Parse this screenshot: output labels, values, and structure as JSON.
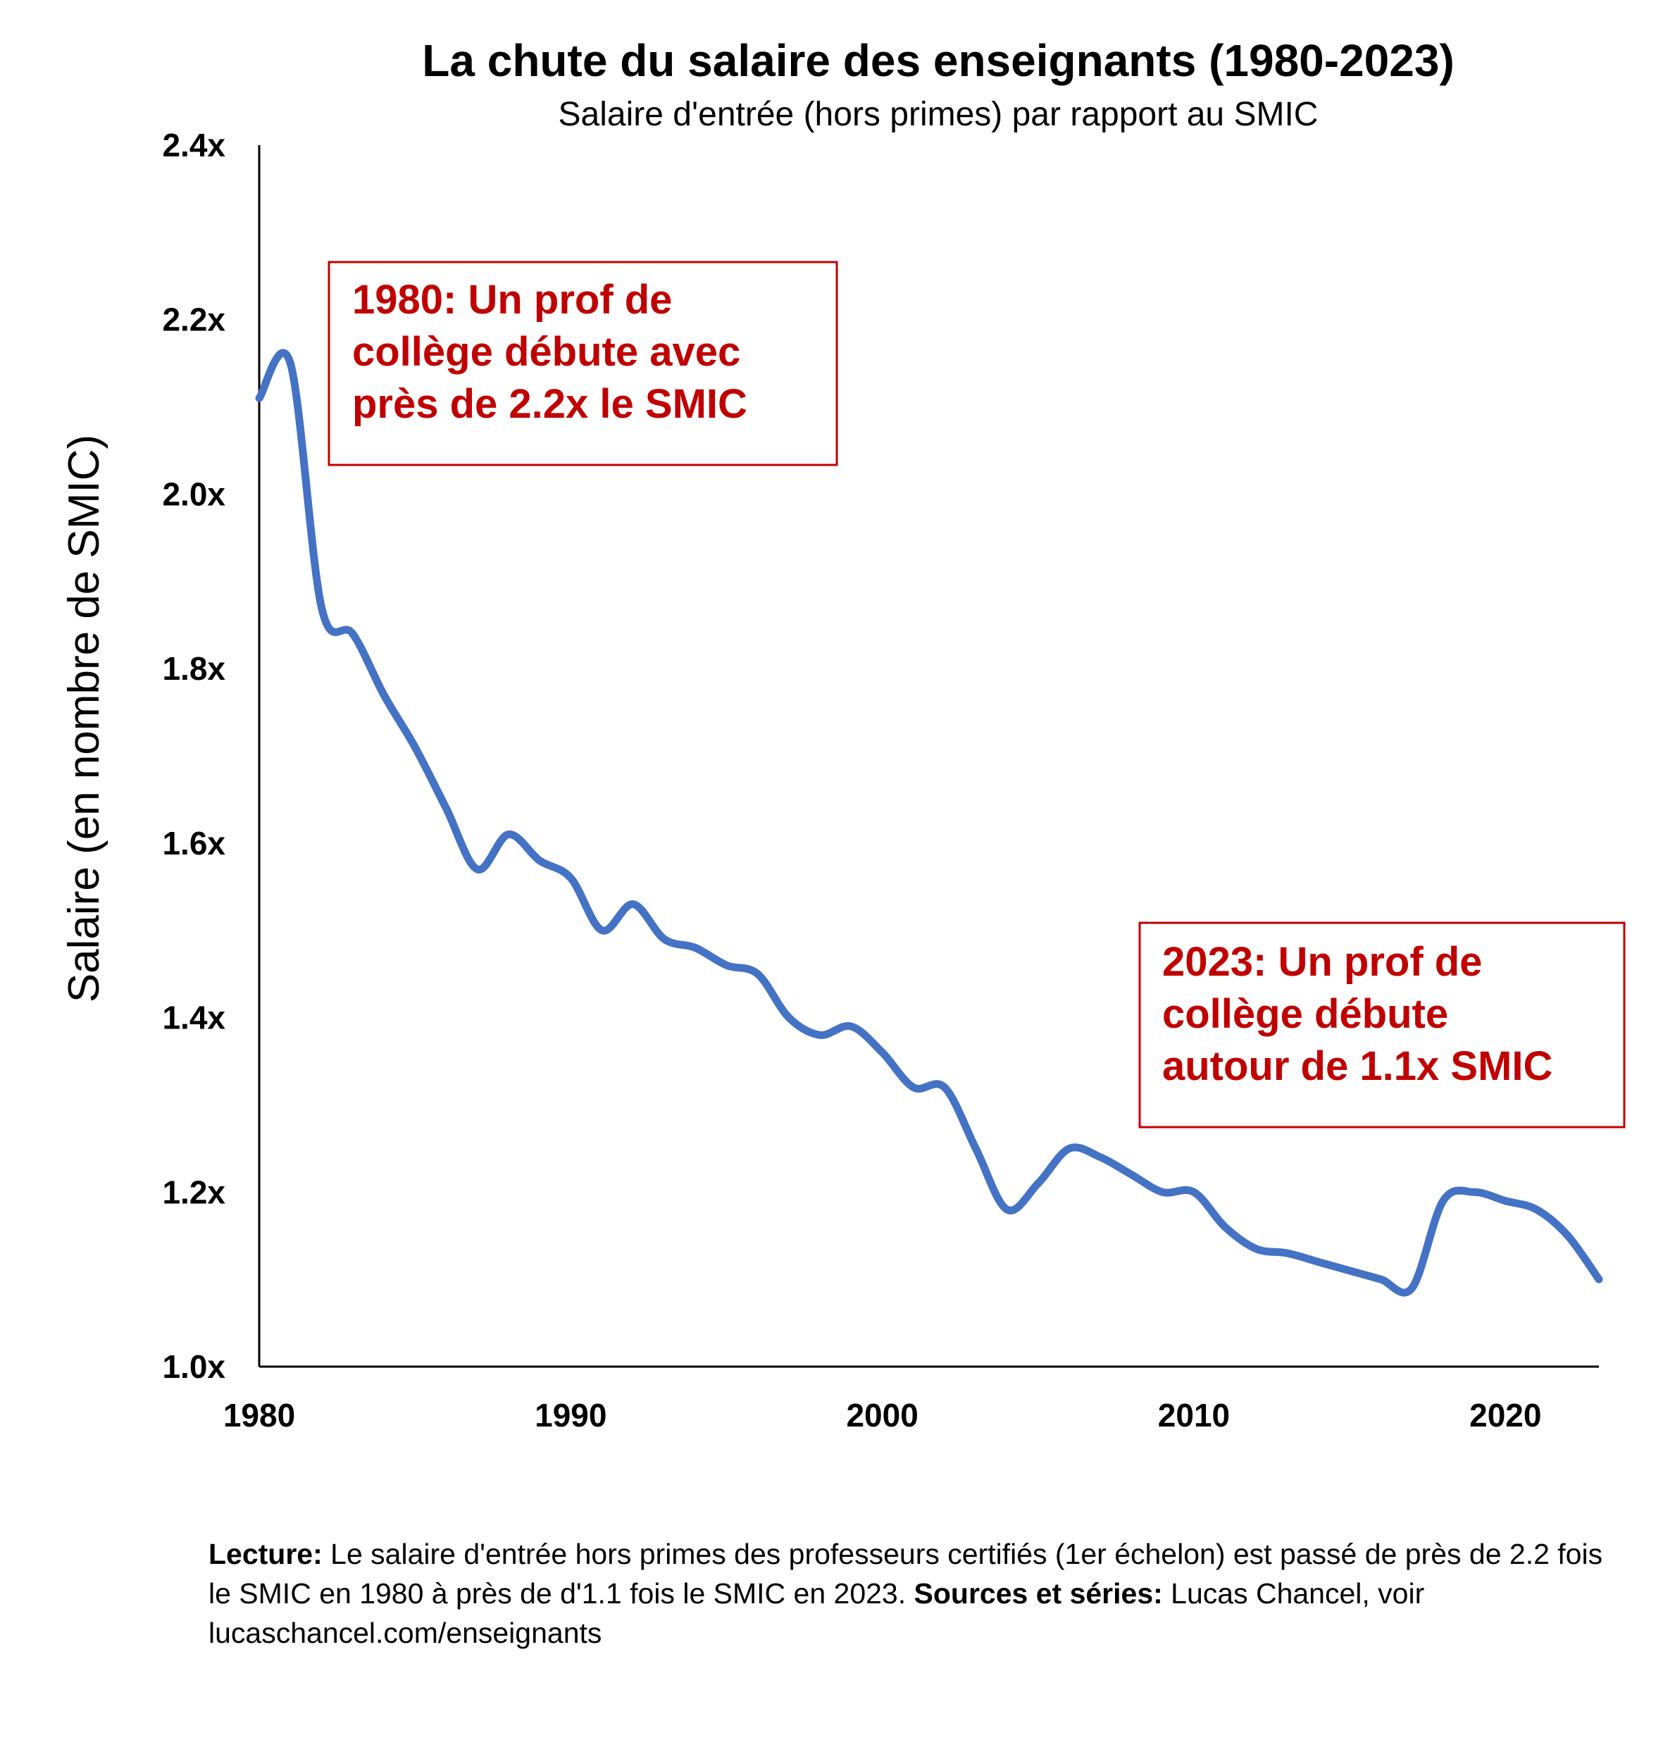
{
  "chart_data": {
    "type": "line",
    "title": "La chute du salaire des enseignants (1980-2023)",
    "subtitle": "Salaire d'entrée (hors primes) par rapport au SMIC",
    "xlabel": "",
    "ylabel": "Salaire (en nombre de SMIC)",
    "xlim": [
      1980,
      2023
    ],
    "ylim": [
      1.0,
      2.4
    ],
    "x_ticks": [
      1980,
      1990,
      2000,
      2010,
      2020
    ],
    "x_tick_labels": [
      "1980",
      "1990",
      "2000",
      "2010",
      "2020"
    ],
    "y_ticks": [
      1.0,
      1.2,
      1.4,
      1.6,
      1.8,
      2.0,
      2.2,
      2.4
    ],
    "y_tick_labels": [
      "1.0x",
      "1.2x",
      "1.4x",
      "1.6x",
      "1.8x",
      "2.0x",
      "2.2x",
      "2.4x"
    ],
    "grid": false,
    "series": [
      {
        "name": "Salaire d'entrée / SMIC",
        "color": "#4472c4",
        "x": [
          1980,
          1981,
          1982,
          1983,
          1984,
          1985,
          1986,
          1987,
          1988,
          1989,
          1990,
          1991,
          1992,
          1993,
          1994,
          1995,
          1996,
          1997,
          1998,
          1999,
          2000,
          2001,
          2002,
          2003,
          2004,
          2005,
          2006,
          2007,
          2008,
          2009,
          2010,
          2011,
          2012,
          2013,
          2014,
          2015,
          2016,
          2017,
          2018,
          2019,
          2020,
          2021,
          2022,
          2023
        ],
        "values": [
          2.11,
          2.15,
          1.87,
          1.84,
          1.77,
          1.71,
          1.64,
          1.57,
          1.61,
          1.58,
          1.56,
          1.5,
          1.53,
          1.49,
          1.48,
          1.46,
          1.45,
          1.4,
          1.38,
          1.39,
          1.36,
          1.32,
          1.32,
          1.25,
          1.18,
          1.21,
          1.25,
          1.24,
          1.22,
          1.2,
          1.2,
          1.16,
          1.135,
          1.13,
          1.12,
          1.11,
          1.1,
          1.09,
          1.19,
          1.2,
          1.19,
          1.18,
          1.15,
          1.1
        ]
      }
    ],
    "annotations": [
      {
        "position": "top-left",
        "lines": [
          "1980: Un prof de",
          "collège débute avec",
          "près de 2.2x le SMIC"
        ],
        "color": "#c00000"
      },
      {
        "position": "lower-right",
        "lines": [
          "2023: Un prof de",
          "collège débute",
          "autour de 1.1x SMIC"
        ],
        "color": "#c00000"
      }
    ]
  },
  "footnote": {
    "lecture_label": "Lecture:",
    "lecture_text": " Le salaire d'entrée hors primes des professeurs certifiés (1er échelon) est passé de près de 2.2 fois le SMIC en 1980 à près de d'1.1 fois le SMIC en 2023. ",
    "sources_label": "Sources et séries:",
    "sources_text": " Lucas Chancel, voir lucaschancel.com/enseignants"
  }
}
